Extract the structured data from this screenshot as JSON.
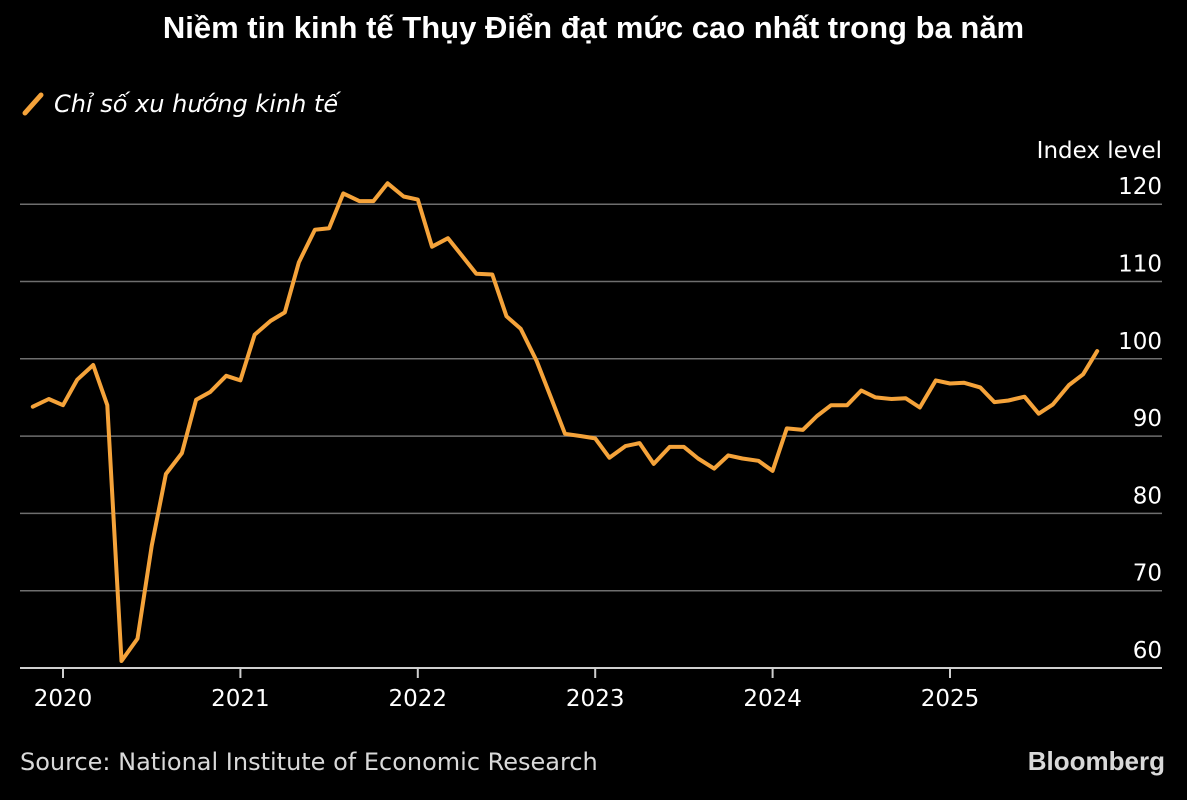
{
  "title": "Niềm tin kinh tế Thụy Điển đạt mức cao nhất trong ba năm",
  "legend_label": "Chỉ số xu hướng kinh tế",
  "source": "Source: National Institute of Economic Research",
  "brand": "Bloomberg",
  "colors": {
    "background": "#000000",
    "line": "#f5a33a",
    "grid": "#6e6e6e",
    "text": "#ffffff"
  },
  "chart_data": {
    "type": "line",
    "title": "Niềm tin kinh tế Thụy Điển đạt mức cao nhất trong ba năm",
    "ylabel": "Index level",
    "xlabel": "",
    "ylim": [
      58,
      122
    ],
    "yticks": [
      60,
      70,
      80,
      90,
      100,
      110,
      120
    ],
    "xlim": [
      2019.75,
      2025.95
    ],
    "xticks": [
      {
        "value": 2020,
        "label": "2020"
      },
      {
        "value": 2021,
        "label": "2021"
      },
      {
        "value": 2022,
        "label": "2022"
      },
      {
        "value": 2023,
        "label": "2023"
      },
      {
        "value": 2024,
        "label": "2024"
      },
      {
        "value": 2025,
        "label": "2025"
      }
    ],
    "grid": true,
    "legend": "top-left",
    "series": [
      {
        "name": "Chỉ số xu hướng kinh tế",
        "x": [
          2019.83,
          2019.92,
          2020.0,
          2020.08,
          2020.17,
          2020.25,
          2020.33,
          2020.42,
          2020.5,
          2020.58,
          2020.67,
          2020.75,
          2020.83,
          2020.92,
          2021.0,
          2021.08,
          2021.17,
          2021.25,
          2021.33,
          2021.42,
          2021.5,
          2021.58,
          2021.67,
          2021.75,
          2021.83,
          2021.92,
          2022.0,
          2022.08,
          2022.17,
          2022.25,
          2022.33,
          2022.42,
          2022.5,
          2022.58,
          2022.67,
          2022.75,
          2022.83,
          2022.92,
          2023.0,
          2023.08,
          2023.17,
          2023.25,
          2023.33,
          2023.42,
          2023.5,
          2023.58,
          2023.67,
          2023.75,
          2023.83,
          2023.92,
          2024.0,
          2024.08,
          2024.17,
          2024.25,
          2024.33,
          2024.42,
          2024.5,
          2024.58,
          2024.67,
          2024.75,
          2024.83,
          2024.92,
          2025.0,
          2025.08,
          2025.17,
          2025.25,
          2025.33,
          2025.42,
          2025.5,
          2025.58,
          2025.67,
          2025.75,
          2025.83
        ],
        "values": [
          93.8,
          94.8,
          94.0,
          97.3,
          99.2,
          94.0,
          60.9,
          63.8,
          75.8,
          85.1,
          87.8,
          94.7,
          95.7,
          97.8,
          97.2,
          103.1,
          104.9,
          106.0,
          112.5,
          116.7,
          116.9,
          121.4,
          120.4,
          120.4,
          122.7,
          121.0,
          120.6,
          114.5,
          115.6,
          113.3,
          111.0,
          110.9,
          105.5,
          103.9,
          99.7,
          95.0,
          90.3,
          90.0,
          89.7,
          87.2,
          88.7,
          89.1,
          86.4,
          88.6,
          88.6,
          87.1,
          85.8,
          87.5,
          87.1,
          86.8,
          85.5,
          91.0,
          90.8,
          92.6,
          94.0,
          94.0,
          95.9,
          95.0,
          94.8,
          94.9,
          93.7,
          97.2,
          96.8,
          96.9,
          96.3,
          94.4,
          94.6,
          95.1,
          92.9,
          94.1,
          96.6,
          98.0,
          101.0
        ]
      }
    ]
  }
}
